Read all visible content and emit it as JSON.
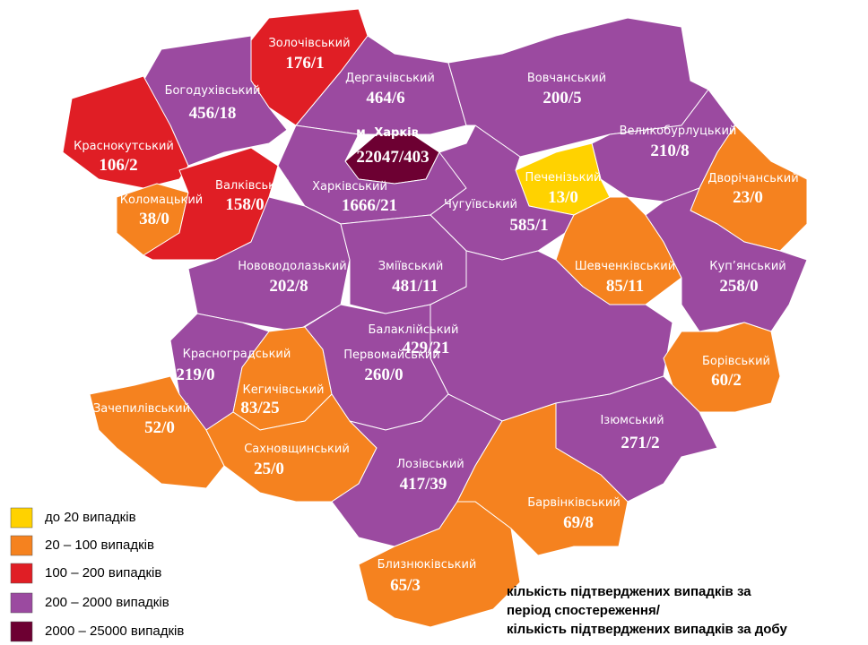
{
  "legend": [
    {
      "label": "до 20  випадків",
      "color": "#ffd200"
    },
    {
      "label": "20 – 100  випадків",
      "color": "#f5821f"
    },
    {
      "label": "100 – 200  випадків",
      "color": "#e01e25"
    },
    {
      "label": "200 – 2000  випадків",
      "color": "#9b4aa0"
    },
    {
      "label": "2000 – 25000  випадків",
      "color": "#6d0032"
    }
  ],
  "regions": [
    {
      "name": "Золочівський",
      "cases": "176/1",
      "color": "#e01e25"
    },
    {
      "name": "Богодухівський",
      "cases": "456/18",
      "color": "#9b4aa0"
    },
    {
      "name": "Краснокутський",
      "cases": "106/2",
      "color": "#e01e25"
    },
    {
      "name": "Коломацький",
      "cases": "38/0",
      "color": "#f5821f"
    },
    {
      "name": "Валківський",
      "cases": "158/0",
      "color": "#e01e25"
    },
    {
      "name": "Дергачівський",
      "cases": "464/6",
      "color": "#9b4aa0"
    },
    {
      "name": "м. Харків",
      "cases": "22047/403",
      "color": "#6d0032"
    },
    {
      "name": "Харківський",
      "cases": "1666/21",
      "color": "#9b4aa0"
    },
    {
      "name": "Вовчанський",
      "cases": "200/5",
      "color": "#9b4aa0"
    },
    {
      "name": "Великобурлуцький",
      "cases": "210/8",
      "color": "#9b4aa0"
    },
    {
      "name": "Печенізький",
      "cases": "13/0",
      "color": "#ffd200"
    },
    {
      "name": "Чугуївський",
      "cases": "585/1",
      "color": "#9b4aa0"
    },
    {
      "name": "Дворічанський",
      "cases": "23/0",
      "color": "#f5821f"
    },
    {
      "name": "Шевченківський",
      "cases": "85/11",
      "color": "#f5821f"
    },
    {
      "name": "Куп’янський",
      "cases": "258/0",
      "color": "#9b4aa0"
    },
    {
      "name": "Нововодолазький",
      "cases": "202/8",
      "color": "#9b4aa0"
    },
    {
      "name": "Зміївський",
      "cases": "481/11",
      "color": "#9b4aa0"
    },
    {
      "name": "Балаклійський",
      "cases": "429/21",
      "color": "#9b4aa0"
    },
    {
      "name": "Борівський",
      "cases": "60/2",
      "color": "#f5821f"
    },
    {
      "name": "Ізюмський",
      "cases": "271/2",
      "color": "#9b4aa0"
    },
    {
      "name": "Красноградський",
      "cases": "219/0",
      "color": "#9b4aa0"
    },
    {
      "name": "Кегичівський",
      "cases": "83/25",
      "color": "#f5821f"
    },
    {
      "name": "Первомайський",
      "cases": "260/0",
      "color": "#9b4aa0"
    },
    {
      "name": "Зачепилівський",
      "cases": "52/0",
      "color": "#f5821f"
    },
    {
      "name": "Сахновщинський",
      "cases": "25/0",
      "color": "#f5821f"
    },
    {
      "name": "Лозівський",
      "cases": "417/39",
      "color": "#9b4aa0"
    },
    {
      "name": "Барвінківський",
      "cases": "69/8",
      "color": "#f5821f"
    },
    {
      "name": "Близнюківський",
      "cases": "65/3",
      "color": "#f5821f"
    }
  ],
  "note": [
    "кількість підтверджених випадків за",
    "період спостереження/",
    "кількість підтверджених випадків за добу"
  ]
}
